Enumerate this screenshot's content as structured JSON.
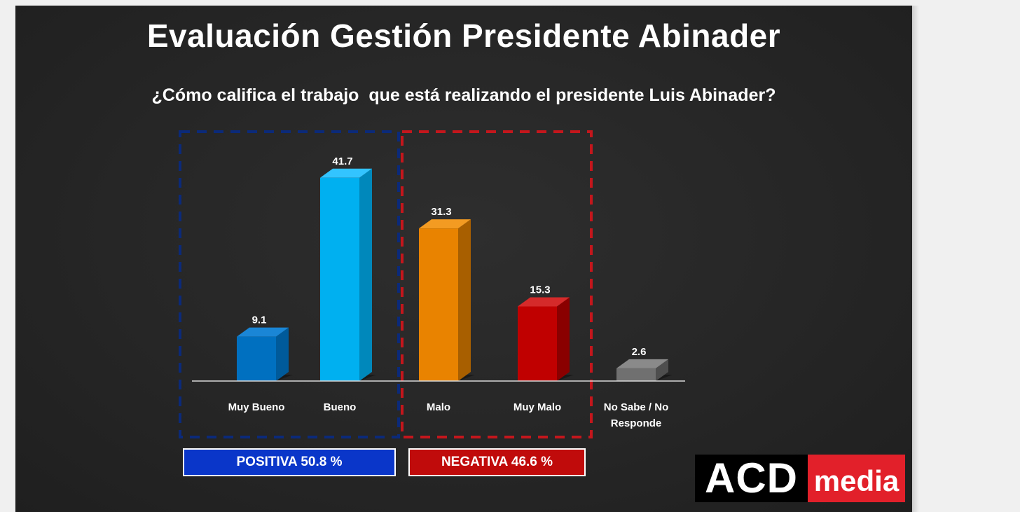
{
  "slide": {
    "title": "Evaluación Gestión Presidente Abinader",
    "question": "¿Cómo califica el trabajo  que está realizando el presidente Luis Abinader?"
  },
  "chart_data": {
    "type": "bar",
    "categories": [
      "Muy Bueno",
      "Bueno",
      "Malo",
      "Muy Malo",
      "No Sabe / No Responde"
    ],
    "values": [
      9.1,
      41.7,
      31.3,
      15.3,
      2.6
    ],
    "value_labels": [
      "9.1",
      "41.7",
      "31.3",
      "15.3",
      "2.6"
    ],
    "category_lines": [
      [
        "Muy Bueno"
      ],
      [
        "Bueno"
      ],
      [
        "Malo"
      ],
      [
        "Muy Malo"
      ],
      [
        "No Sabe / No",
        "Responde"
      ]
    ],
    "colors": [
      "#0070c0",
      "#00b0f0",
      "#e98300",
      "#c00000",
      "#707070"
    ],
    "side_colors": [
      "#005a9a",
      "#0088bb",
      "#a85f00",
      "#8a0000",
      "#4e4e4e"
    ],
    "top_colors": [
      "#1a86d6",
      "#33c4ff",
      "#f39b22",
      "#d52a2a",
      "#8a8a8a"
    ],
    "group_colors": {
      "positive": "#0b2a7a",
      "negative": "#c4161c"
    },
    "ylim": [
      0,
      45
    ],
    "grid": false,
    "legend": "none",
    "title": "",
    "xlabel": "",
    "ylabel": ""
  },
  "summary": {
    "positive_label": "POSITIVA 50.8 %",
    "negative_label": "NEGATIVA 46.6 %",
    "positive_color": "#0a36c9",
    "negative_color": "#c00b0b"
  },
  "logo": {
    "left_text": "ACD",
    "right_text": "media",
    "left_bg": "#000000",
    "right_bg": "#e2202a"
  }
}
